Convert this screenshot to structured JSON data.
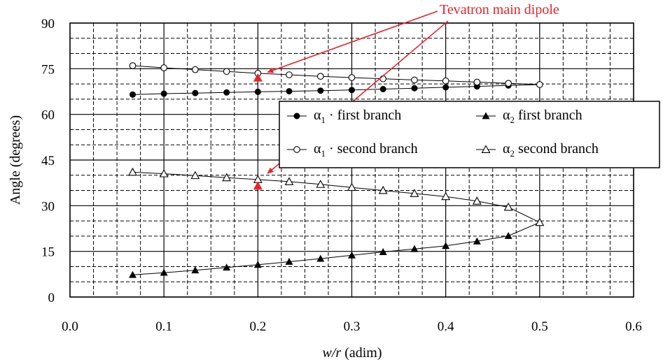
{
  "chart_data": {
    "type": "scatter",
    "xlabel_italic": "w/r",
    "xlabel_rest": "(adim)",
    "ylabel": "Angle (degrees)",
    "xlim": [
      0.0,
      0.6
    ],
    "ylim": [
      0,
      90
    ],
    "x_ticks": [
      "0.0",
      "0.1",
      "0.2",
      "0.3",
      "0.4",
      "0.5",
      "0.6"
    ],
    "y_ticks": [
      "0",
      "15",
      "30",
      "45",
      "60",
      "75",
      "90"
    ],
    "grid": true,
    "series": [
      {
        "name": "α1 · first branch",
        "symbol": "α",
        "sub": "1",
        "sep": "·",
        "desc": "first branch",
        "marker": "filled-circle",
        "x": [
          0.0667,
          0.1,
          0.1333,
          0.1667,
          0.2,
          0.2333,
          0.2667,
          0.3,
          0.3333,
          0.3667,
          0.4,
          0.4333,
          0.4667,
          0.5
        ],
        "y": [
          66.5,
          66.8,
          67.0,
          67.2,
          67.4,
          67.6,
          67.8,
          68.0,
          68.3,
          68.6,
          68.9,
          69.2,
          69.5,
          69.8
        ]
      },
      {
        "name": "α1 · second branch",
        "symbol": "α",
        "sub": "1",
        "sep": "·",
        "desc": "second branch",
        "marker": "open-circle",
        "x": [
          0.0667,
          0.1,
          0.1333,
          0.1667,
          0.2,
          0.2333,
          0.2667,
          0.3,
          0.3333,
          0.3667,
          0.4,
          0.4333,
          0.4667,
          0.5
        ],
        "y": [
          76.0,
          75.3,
          74.7,
          74.1,
          73.5,
          73.0,
          72.5,
          72.1,
          71.7,
          71.3,
          71.0,
          70.6,
          70.2,
          69.8
        ]
      },
      {
        "name": "α2 first branch",
        "symbol": "α",
        "sub": "2",
        "sep": "",
        "desc": "first branch",
        "marker": "filled-triangle",
        "x": [
          0.0667,
          0.1,
          0.1333,
          0.1667,
          0.2,
          0.2333,
          0.2667,
          0.3,
          0.3333,
          0.3667,
          0.4,
          0.4333,
          0.4667,
          0.5
        ],
        "y": [
          7.3,
          8.0,
          8.8,
          9.7,
          10.6,
          11.6,
          12.6,
          13.7,
          14.8,
          15.8,
          16.8,
          18.3,
          20.1,
          24.5
        ]
      },
      {
        "name": "α2 second branch",
        "symbol": "α",
        "sub": "2",
        "sep": "",
        "desc": "second branch",
        "marker": "open-triangle",
        "x": [
          0.0667,
          0.1,
          0.1333,
          0.1667,
          0.2,
          0.2333,
          0.2667,
          0.3,
          0.3333,
          0.3667,
          0.4,
          0.4333,
          0.4667,
          0.5
        ],
        "y": [
          41.0,
          40.5,
          39.9,
          39.2,
          38.6,
          37.9,
          37.0,
          36.0,
          35.0,
          34.0,
          33.0,
          31.5,
          29.5,
          24.5
        ]
      }
    ],
    "highlights": [
      {
        "x": 0.2,
        "y": 72.0
      },
      {
        "x": 0.2,
        "y": 36.5
      }
    ],
    "annotation": {
      "text": "Tevatron main dipole",
      "color": "#e8232a"
    },
    "legend_position": "right-middle"
  }
}
